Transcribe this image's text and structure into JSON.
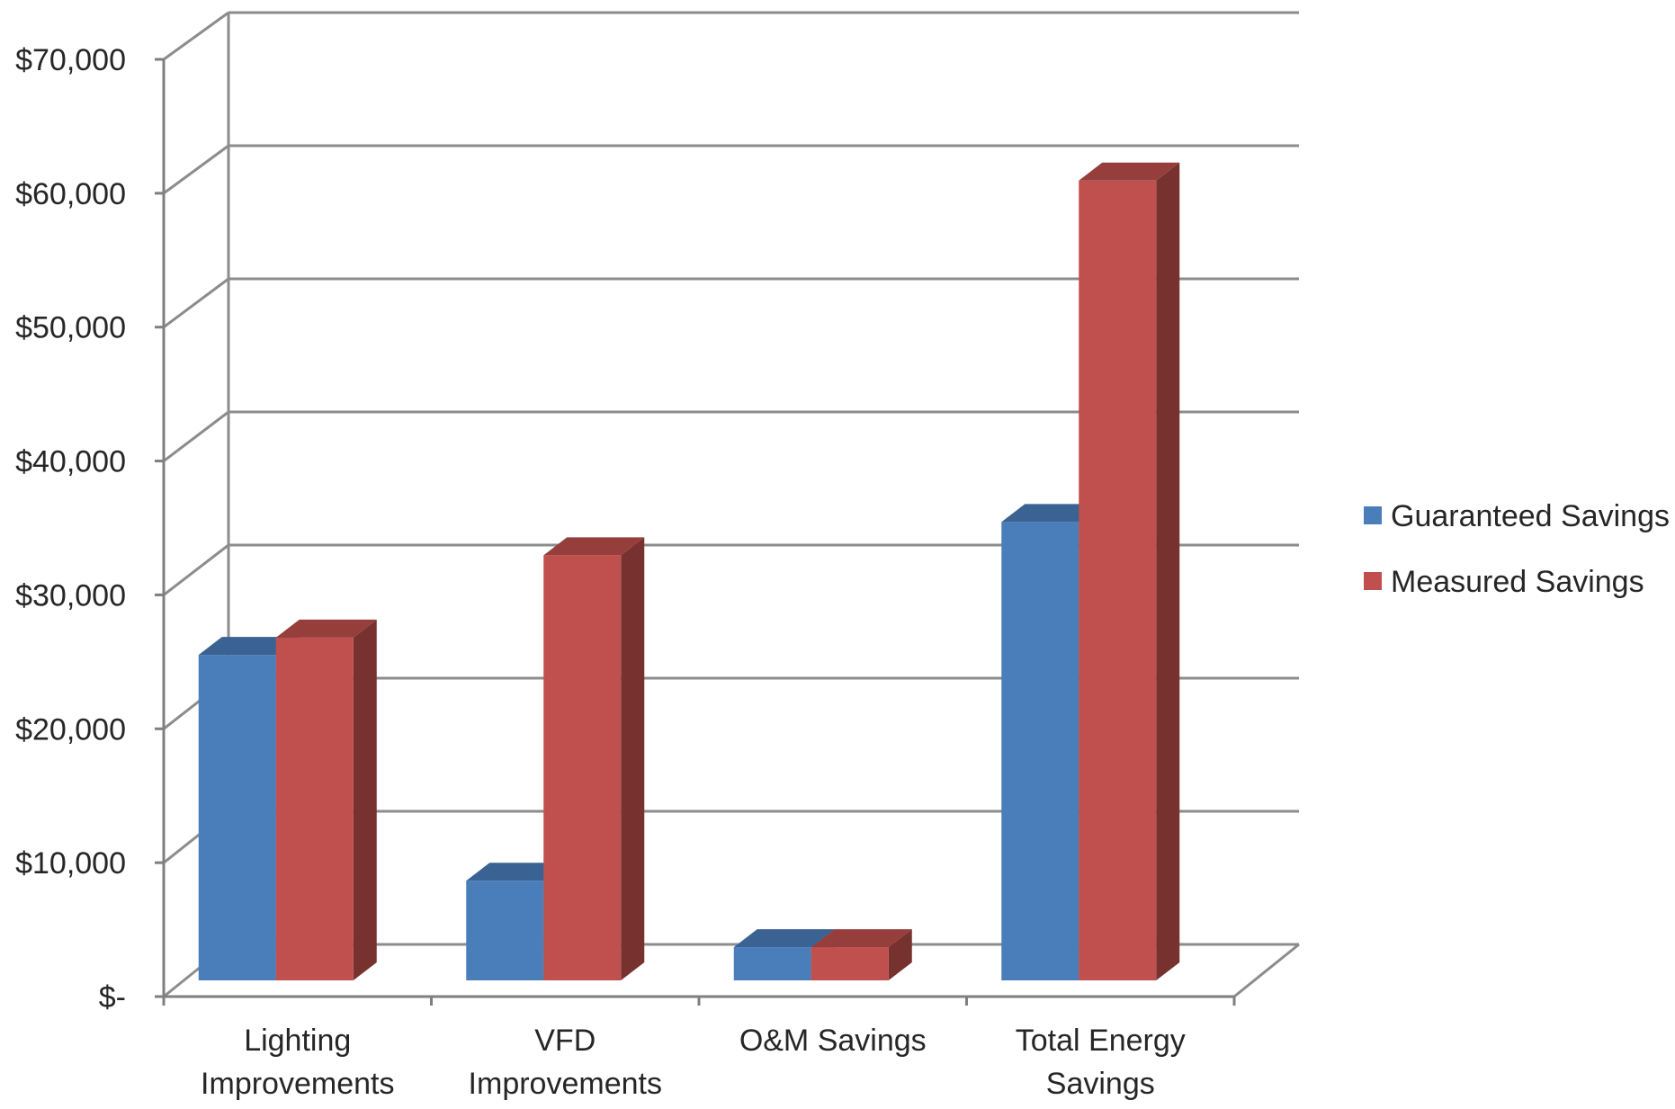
{
  "chart_data": {
    "type": "bar",
    "categories": [
      [
        "Lighting",
        "Improvements"
      ],
      [
        "VFD",
        "Improvements"
      ],
      [
        "O&M Savings"
      ],
      [
        "Total Energy",
        "Savings"
      ]
    ],
    "series": [
      {
        "name": "Guaranteed Savings",
        "color": "#4a7ebb",
        "values": [
          24500,
          7500,
          2500,
          34500
        ]
      },
      {
        "name": "Measured Savings",
        "color": "#c0504d",
        "values": [
          25800,
          32000,
          2500,
          60200
        ]
      }
    ],
    "y_ticks": [
      "$-",
      "$10,000",
      "$20,000",
      "$30,000",
      "$40,000",
      "$50,000",
      "$60,000",
      "$70,000"
    ],
    "ylim": [
      0,
      70000
    ],
    "grid": true,
    "legend_position": "right",
    "style": "3d-clustered-column"
  }
}
